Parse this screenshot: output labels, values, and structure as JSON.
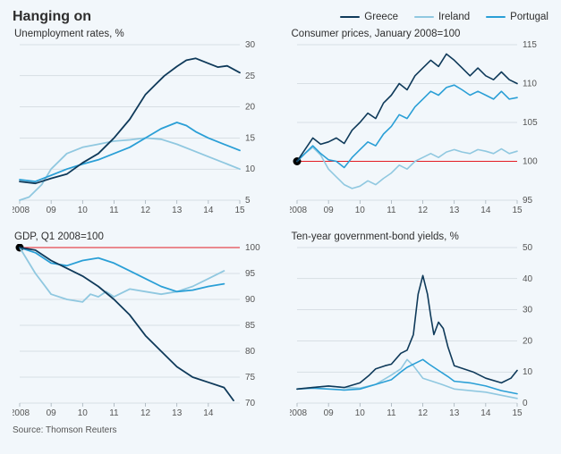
{
  "title": "Hanging on",
  "source": "Source: Thomson Reuters",
  "background_color": "#f2f7fb",
  "colors": {
    "greece": "#0f3a5a",
    "ireland": "#90c8e0",
    "portugal": "#2a9fd6",
    "ref": "#e31b23",
    "grid": "#9aa7b0",
    "text": "#2e2e2e"
  },
  "legend": [
    {
      "label": "Greece",
      "color": "#0f3a5a"
    },
    {
      "label": "Ireland",
      "color": "#90c8e0"
    },
    {
      "label": "Portugal",
      "color": "#2a9fd6"
    }
  ],
  "panels": {
    "unemp": {
      "title": "Unemployment rates, %",
      "type": "line",
      "x_range": [
        2008,
        2015
      ],
      "x_ticks": [
        2008,
        2009,
        2010,
        2011,
        2012,
        2013,
        2014,
        2015
      ],
      "x_tick_labels": [
        "2008",
        "09",
        "10",
        "11",
        "12",
        "13",
        "14",
        "15"
      ],
      "y_range": [
        5,
        30
      ],
      "y_ticks": [
        5,
        10,
        15,
        20,
        25,
        30
      ],
      "line_width": 1.8,
      "label_fontsize": 10,
      "series": {
        "greece": [
          [
            2008,
            8
          ],
          [
            2008.5,
            7.7
          ],
          [
            2009,
            8.5
          ],
          [
            2009.5,
            9.2
          ],
          [
            2010,
            11
          ],
          [
            2010.5,
            12.5
          ],
          [
            2011,
            15
          ],
          [
            2011.5,
            18
          ],
          [
            2012,
            22
          ],
          [
            2012.3,
            23.5
          ],
          [
            2012.6,
            25
          ],
          [
            2013,
            26.5
          ],
          [
            2013.3,
            27.5
          ],
          [
            2013.6,
            27.8
          ],
          [
            2014,
            27
          ],
          [
            2014.3,
            26.4
          ],
          [
            2014.6,
            26.6
          ],
          [
            2015,
            25.5
          ]
        ],
        "ireland": [
          [
            2008,
            5
          ],
          [
            2008.3,
            5.5
          ],
          [
            2008.7,
            7.5
          ],
          [
            2009,
            10
          ],
          [
            2009.5,
            12.5
          ],
          [
            2010,
            13.5
          ],
          [
            2010.5,
            14
          ],
          [
            2011,
            14.5
          ],
          [
            2011.5,
            14.7
          ],
          [
            2012,
            15
          ],
          [
            2012.5,
            14.8
          ],
          [
            2013,
            14
          ],
          [
            2013.5,
            13
          ],
          [
            2014,
            12
          ],
          [
            2014.5,
            11
          ],
          [
            2015,
            10
          ]
        ],
        "portugal": [
          [
            2008,
            8.3
          ],
          [
            2008.5,
            8
          ],
          [
            2009,
            9
          ],
          [
            2009.5,
            10
          ],
          [
            2010,
            10.8
          ],
          [
            2010.5,
            11.5
          ],
          [
            2011,
            12.5
          ],
          [
            2011.5,
            13.5
          ],
          [
            2012,
            15
          ],
          [
            2012.5,
            16.5
          ],
          [
            2013,
            17.5
          ],
          [
            2013.3,
            17
          ],
          [
            2013.6,
            16
          ],
          [
            2014,
            15
          ],
          [
            2014.5,
            14
          ],
          [
            2015,
            13
          ]
        ]
      }
    },
    "cpi": {
      "title": "Consumer prices, January 2008=100",
      "type": "line",
      "x_range": [
        2008,
        2015
      ],
      "x_ticks": [
        2008,
        2009,
        2010,
        2011,
        2012,
        2013,
        2014,
        2015
      ],
      "x_tick_labels": [
        "2008",
        "09",
        "10",
        "11",
        "12",
        "13",
        "14",
        "15"
      ],
      "y_range": [
        95,
        115
      ],
      "y_ticks": [
        95,
        100,
        105,
        110,
        115
      ],
      "ref_y": 100,
      "ref_dot_x": 2008,
      "line_width": 1.6,
      "label_fontsize": 10,
      "series": {
        "greece": [
          [
            2008,
            100
          ],
          [
            2008.25,
            101.5
          ],
          [
            2008.5,
            103
          ],
          [
            2008.75,
            102.2
          ],
          [
            2009,
            102.5
          ],
          [
            2009.25,
            103
          ],
          [
            2009.5,
            102.3
          ],
          [
            2009.75,
            104
          ],
          [
            2010,
            105
          ],
          [
            2010.25,
            106.2
          ],
          [
            2010.5,
            105.5
          ],
          [
            2010.75,
            107.5
          ],
          [
            2011,
            108.5
          ],
          [
            2011.25,
            110
          ],
          [
            2011.5,
            109.2
          ],
          [
            2011.75,
            111
          ],
          [
            2012,
            112
          ],
          [
            2012.25,
            113
          ],
          [
            2012.5,
            112.2
          ],
          [
            2012.75,
            113.8
          ],
          [
            2013,
            113
          ],
          [
            2013.25,
            112
          ],
          [
            2013.5,
            111
          ],
          [
            2013.75,
            112
          ],
          [
            2014,
            111
          ],
          [
            2014.25,
            110.5
          ],
          [
            2014.5,
            111.5
          ],
          [
            2014.75,
            110.5
          ],
          [
            2015,
            110
          ]
        ],
        "portugal": [
          [
            2008,
            100
          ],
          [
            2008.25,
            101
          ],
          [
            2008.5,
            102
          ],
          [
            2008.75,
            101
          ],
          [
            2009,
            100.2
          ],
          [
            2009.25,
            100
          ],
          [
            2009.5,
            99.2
          ],
          [
            2009.75,
            100.5
          ],
          [
            2010,
            101.5
          ],
          [
            2010.25,
            102.5
          ],
          [
            2010.5,
            102
          ],
          [
            2010.75,
            103.5
          ],
          [
            2011,
            104.5
          ],
          [
            2011.25,
            106
          ],
          [
            2011.5,
            105.5
          ],
          [
            2011.75,
            107
          ],
          [
            2012,
            108
          ],
          [
            2012.25,
            109
          ],
          [
            2012.5,
            108.5
          ],
          [
            2012.75,
            109.5
          ],
          [
            2013,
            109.8
          ],
          [
            2013.25,
            109.2
          ],
          [
            2013.5,
            108.5
          ],
          [
            2013.75,
            109
          ],
          [
            2014,
            108.5
          ],
          [
            2014.25,
            108
          ],
          [
            2014.5,
            109
          ],
          [
            2014.75,
            108
          ],
          [
            2015,
            108.2
          ]
        ],
        "ireland": [
          [
            2008,
            100
          ],
          [
            2008.25,
            101
          ],
          [
            2008.5,
            101.8
          ],
          [
            2008.75,
            100.8
          ],
          [
            2009,
            99
          ],
          [
            2009.25,
            98
          ],
          [
            2009.5,
            97
          ],
          [
            2009.75,
            96.5
          ],
          [
            2010,
            96.8
          ],
          [
            2010.25,
            97.5
          ],
          [
            2010.5,
            97
          ],
          [
            2010.75,
            97.8
          ],
          [
            2011,
            98.5
          ],
          [
            2011.25,
            99.5
          ],
          [
            2011.5,
            99
          ],
          [
            2011.75,
            100
          ],
          [
            2012,
            100.5
          ],
          [
            2012.25,
            101
          ],
          [
            2012.5,
            100.5
          ],
          [
            2012.75,
            101.2
          ],
          [
            2013,
            101.5
          ],
          [
            2013.25,
            101.2
          ],
          [
            2013.5,
            101
          ],
          [
            2013.75,
            101.5
          ],
          [
            2014,
            101.3
          ],
          [
            2014.25,
            101
          ],
          [
            2014.5,
            101.6
          ],
          [
            2014.75,
            101
          ],
          [
            2015,
            101.3
          ]
        ]
      }
    },
    "gdp": {
      "title": "GDP, Q1 2008=100",
      "type": "line",
      "x_range": [
        2008,
        2015
      ],
      "x_ticks": [
        2008,
        2009,
        2010,
        2011,
        2012,
        2013,
        2014
      ],
      "x_tick_labels": [
        "2008",
        "09",
        "10",
        "11",
        "12",
        "13",
        "14"
      ],
      "y_range": [
        70,
        100
      ],
      "y_ticks": [
        70,
        75,
        80,
        85,
        90,
        95,
        100
      ],
      "ref_y": 100,
      "ref_dot_x": 2008,
      "line_width": 1.8,
      "label_fontsize": 10,
      "series": {
        "greece": [
          [
            2008,
            100
          ],
          [
            2008.5,
            99.5
          ],
          [
            2009,
            97.5
          ],
          [
            2009.5,
            96
          ],
          [
            2010,
            94.5
          ],
          [
            2010.5,
            92.5
          ],
          [
            2011,
            90
          ],
          [
            2011.5,
            87
          ],
          [
            2012,
            83
          ],
          [
            2012.5,
            80
          ],
          [
            2013,
            77
          ],
          [
            2013.5,
            75
          ],
          [
            2014,
            74
          ],
          [
            2014.5,
            73
          ],
          [
            2014.8,
            70.5
          ]
        ],
        "ireland": [
          [
            2008,
            100
          ],
          [
            2008.25,
            97.5
          ],
          [
            2008.5,
            95
          ],
          [
            2008.75,
            93
          ],
          [
            2009,
            91
          ],
          [
            2009.5,
            90
          ],
          [
            2010,
            89.5
          ],
          [
            2010.25,
            91
          ],
          [
            2010.5,
            90.5
          ],
          [
            2010.75,
            91.5
          ],
          [
            2011,
            90.5
          ],
          [
            2011.5,
            92
          ],
          [
            2012,
            91.5
          ],
          [
            2012.5,
            91
          ],
          [
            2013,
            91.5
          ],
          [
            2013.5,
            92.5
          ],
          [
            2014,
            94
          ],
          [
            2014.5,
            95.5
          ]
        ],
        "portugal": [
          [
            2008,
            100
          ],
          [
            2008.5,
            99
          ],
          [
            2009,
            97
          ],
          [
            2009.5,
            96.5
          ],
          [
            2010,
            97.5
          ],
          [
            2010.5,
            98
          ],
          [
            2011,
            97
          ],
          [
            2011.5,
            95.5
          ],
          [
            2012,
            94
          ],
          [
            2012.5,
            92.5
          ],
          [
            2013,
            91.5
          ],
          [
            2013.5,
            91.8
          ],
          [
            2014,
            92.5
          ],
          [
            2014.5,
            93
          ]
        ]
      }
    },
    "bond": {
      "title": "Ten-year government-bond yields, %",
      "type": "line",
      "x_range": [
        2008,
        2015
      ],
      "x_ticks": [
        2008,
        2009,
        2010,
        2011,
        2012,
        2013,
        2014,
        2015
      ],
      "x_tick_labels": [
        "2008",
        "09",
        "10",
        "11",
        "12",
        "13",
        "14",
        "15"
      ],
      "y_range": [
        0,
        50
      ],
      "y_ticks": [
        0,
        10,
        20,
        30,
        40,
        50
      ],
      "line_width": 1.6,
      "label_fontsize": 10,
      "series": {
        "greece": [
          [
            2008,
            4.5
          ],
          [
            2008.5,
            5
          ],
          [
            2009,
            5.5
          ],
          [
            2009.5,
            5
          ],
          [
            2010,
            6.5
          ],
          [
            2010.3,
            9
          ],
          [
            2010.5,
            11
          ],
          [
            2010.8,
            12
          ],
          [
            2011,
            12.5
          ],
          [
            2011.3,
            16
          ],
          [
            2011.5,
            17
          ],
          [
            2011.7,
            22
          ],
          [
            2011.85,
            35
          ],
          [
            2012,
            41
          ],
          [
            2012.15,
            35
          ],
          [
            2012.25,
            28
          ],
          [
            2012.35,
            22
          ],
          [
            2012.5,
            26
          ],
          [
            2012.65,
            24
          ],
          [
            2012.8,
            18
          ],
          [
            2013,
            12
          ],
          [
            2013.3,
            11
          ],
          [
            2013.6,
            10
          ],
          [
            2014,
            8
          ],
          [
            2014.5,
            6.5
          ],
          [
            2014.8,
            8
          ],
          [
            2015,
            10.5
          ]
        ],
        "portugal": [
          [
            2008,
            4.5
          ],
          [
            2008.5,
            4.8
          ],
          [
            2009,
            4.5
          ],
          [
            2009.5,
            4.2
          ],
          [
            2010,
            4.5
          ],
          [
            2010.5,
            6
          ],
          [
            2011,
            7.5
          ],
          [
            2011.3,
            10
          ],
          [
            2011.5,
            11.5
          ],
          [
            2011.8,
            13
          ],
          [
            2012,
            14
          ],
          [
            2012.2,
            12.5
          ],
          [
            2012.5,
            10.5
          ],
          [
            2012.8,
            8.5
          ],
          [
            2013,
            7
          ],
          [
            2013.5,
            6.5
          ],
          [
            2014,
            5.5
          ],
          [
            2014.5,
            4
          ],
          [
            2015,
            3
          ]
        ],
        "ireland": [
          [
            2008,
            4.5
          ],
          [
            2008.5,
            5
          ],
          [
            2009,
            5.5
          ],
          [
            2009.5,
            5
          ],
          [
            2010,
            4.8
          ],
          [
            2010.5,
            6
          ],
          [
            2011,
            9
          ],
          [
            2011.3,
            11
          ],
          [
            2011.5,
            14
          ],
          [
            2011.7,
            12
          ],
          [
            2012,
            8
          ],
          [
            2012.3,
            7
          ],
          [
            2012.6,
            6
          ],
          [
            2013,
            4.5
          ],
          [
            2013.5,
            4
          ],
          [
            2014,
            3.5
          ],
          [
            2014.5,
            2.5
          ],
          [
            2015,
            1.5
          ]
        ]
      }
    }
  }
}
